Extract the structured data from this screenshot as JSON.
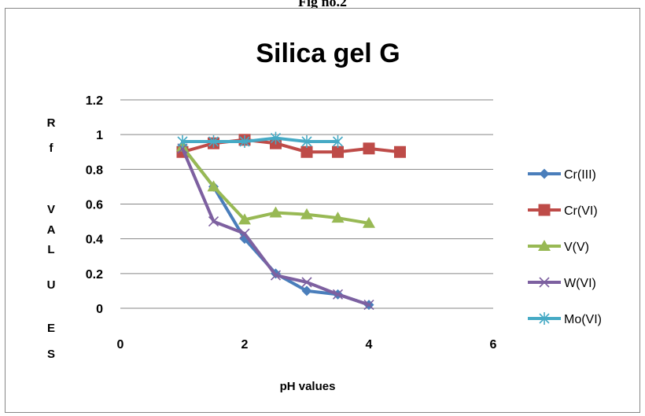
{
  "figure_caption": "Fig no.2",
  "chart_data": {
    "type": "line",
    "title": "Silica gel G",
    "xlabel": "pH values",
    "ylabel": "R f   V A L U E S",
    "ylabel_chars": [
      "R",
      "f",
      "",
      "V",
      "A",
      "L",
      "U",
      "E",
      "S"
    ],
    "xlim": [
      0,
      6
    ],
    "ylim": [
      0,
      1.2
    ],
    "x_ticks": [
      0,
      2,
      4,
      6
    ],
    "x_tick_labels": [
      "0",
      "2",
      "4",
      "6"
    ],
    "y_ticks": [
      0,
      0.2,
      0.4,
      0.6,
      0.8,
      1,
      1.2
    ],
    "y_tick_labels": [
      "0",
      "0.2",
      "0.4",
      "0.6",
      "0.8",
      "1",
      "1.2"
    ],
    "grid": "horizontal",
    "legend_position": "right",
    "series": [
      {
        "name": "Cr(III)",
        "color": "#4a7ebb",
        "marker": "diamond",
        "x": [
          1,
          1.5,
          2,
          2.5,
          3,
          3.5,
          4
        ],
        "y": [
          0.93,
          0.7,
          0.4,
          0.2,
          0.1,
          0.08,
          0.02
        ]
      },
      {
        "name": "Cr(VI)",
        "color": "#be4b48",
        "marker": "square",
        "x": [
          1,
          1.5,
          2,
          2.5,
          3,
          3.5,
          4,
          4.5
        ],
        "y": [
          0.9,
          0.95,
          0.97,
          0.95,
          0.9,
          0.9,
          0.92,
          0.9
        ]
      },
      {
        "name": "V(V)",
        "color": "#98b954",
        "marker": "triangle",
        "x": [
          1,
          1.5,
          2,
          2.5,
          3,
          3.5,
          4
        ],
        "y": [
          0.93,
          0.7,
          0.51,
          0.55,
          0.54,
          0.52,
          0.49
        ]
      },
      {
        "name": "W(VI)",
        "color": "#7d60a0",
        "marker": "x",
        "x": [
          1,
          1.5,
          2,
          2.5,
          3,
          3.5,
          4
        ],
        "y": [
          0.92,
          0.5,
          0.43,
          0.19,
          0.15,
          0.08,
          0.02
        ]
      },
      {
        "name": "Mo(VI)",
        "color": "#46aac5",
        "marker": "star",
        "x": [
          1,
          1.5,
          2,
          2.5,
          3,
          3.5
        ],
        "y": [
          0.96,
          0.96,
          0.96,
          0.98,
          0.96,
          0.96
        ]
      }
    ]
  }
}
